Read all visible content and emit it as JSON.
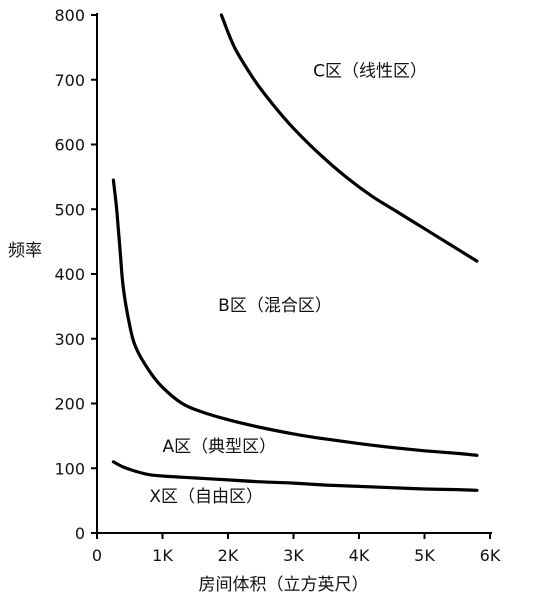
{
  "chart_data": {
    "type": "line",
    "title": "",
    "xlabel": "房间体积（立方英尺）",
    "ylabel": "频率",
    "xlim": [
      0,
      6000
    ],
    "ylim": [
      0,
      800
    ],
    "x_ticks": [
      0,
      1000,
      2000,
      3000,
      4000,
      5000,
      6000
    ],
    "x_tick_labels": [
      "0",
      "1K",
      "2K",
      "3K",
      "4K",
      "5K",
      "6K"
    ],
    "y_ticks": [
      0,
      100,
      200,
      300,
      400,
      500,
      600,
      700,
      800
    ],
    "y_tick_labels": [
      "0",
      "100",
      "200",
      "300",
      "400",
      "500",
      "600",
      "700",
      "800"
    ],
    "grid": false,
    "series": [
      {
        "x": [
          1900,
          2100,
          2400,
          2700,
          3000,
          3400,
          3800,
          4200,
          4600,
          5000,
          5400,
          5800
        ],
        "y": [
          800,
          750,
          700,
          660,
          625,
          585,
          550,
          520,
          495,
          470,
          445,
          420
        ]
      },
      {
        "x": [
          250,
          300,
          350,
          400,
          500,
          600,
          800,
          1000,
          1300,
          1600,
          2000,
          2500,
          3000,
          3500,
          4000,
          4500,
          5000,
          5500,
          5800
        ],
        "y": [
          545,
          500,
          440,
          380,
          320,
          285,
          250,
          225,
          200,
          187,
          175,
          163,
          153,
          145,
          138,
          132,
          127,
          123,
          120
        ]
      },
      {
        "x": [
          250,
          400,
          600,
          800,
          1000,
          1500,
          2000,
          2500,
          3000,
          3500,
          4000,
          4500,
          5000,
          5500,
          5800
        ],
        "y": [
          110,
          102,
          95,
          90,
          88,
          85,
          82,
          79,
          77,
          74,
          72,
          70,
          68,
          67,
          66
        ]
      }
    ],
    "annotations": [
      {
        "text": "C区（线性区）",
        "x": 3300,
        "y": 705
      },
      {
        "text": "B区（混合区）",
        "x": 1850,
        "y": 343
      },
      {
        "text": "A区（典型区）",
        "x": 1000,
        "y": 125
      },
      {
        "text": "X区（自由区）",
        "x": 800,
        "y": 48
      }
    ]
  }
}
